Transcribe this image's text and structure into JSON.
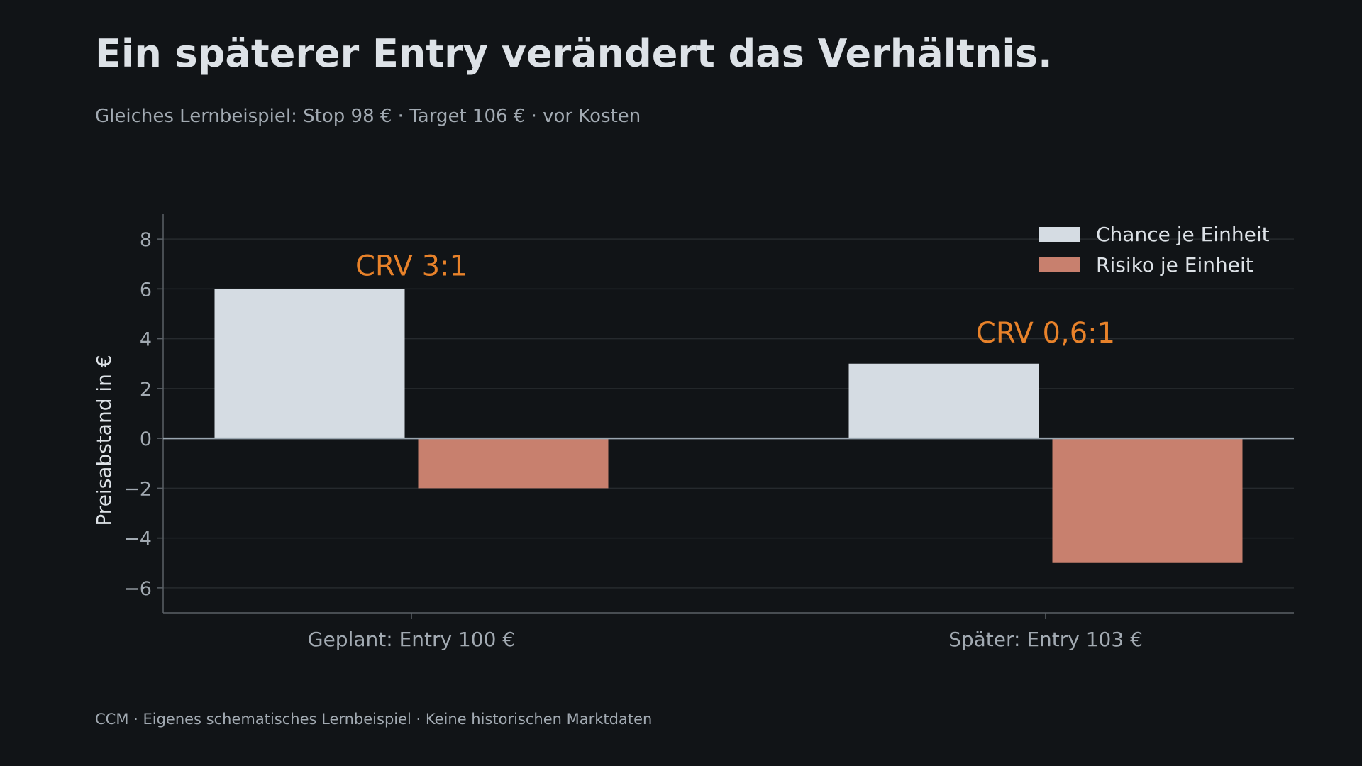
{
  "colors": {
    "background": "#111417",
    "chance": "#d5dce3",
    "risk": "#c8806e",
    "annotation": "#e8822a",
    "grid": "#262a2e",
    "zero_line": "#9aa6b0",
    "axis": "#5a6066"
  },
  "chart_data": {
    "type": "bar",
    "title": "Ein späterer Entry verändert das Verhältnis.",
    "subtitle": "Gleiches Lernbeispiel: Stop 98 € · Target 106 € · vor Kosten",
    "ylabel": "Preisabstand in €",
    "xlabel": "",
    "ylim": [
      -7,
      9
    ],
    "yticks": [
      8,
      6,
      4,
      2,
      0,
      -2,
      -4,
      -6
    ],
    "ytick_labels": [
      "8",
      "6",
      "4",
      "2",
      "0",
      "−2",
      "−4",
      "−6"
    ],
    "categories": [
      "Geplant: Entry 100 €",
      "Später: Entry 103 €"
    ],
    "series": [
      {
        "name": "Chance je Einheit",
        "values": [
          6,
          3
        ]
      },
      {
        "name": "Risiko je Einheit",
        "values": [
          -2,
          -5
        ]
      }
    ],
    "annotations": [
      {
        "text": "CRV 3:1",
        "category": 0,
        "y": 7
      },
      {
        "text": "CRV 0,6:1",
        "category": 1,
        "y": 4.3
      }
    ],
    "grid": true,
    "legend_position": "top-right",
    "footer": "CCM · Eigenes schematisches Lernbeispiel · Keine historischen Marktdaten"
  }
}
